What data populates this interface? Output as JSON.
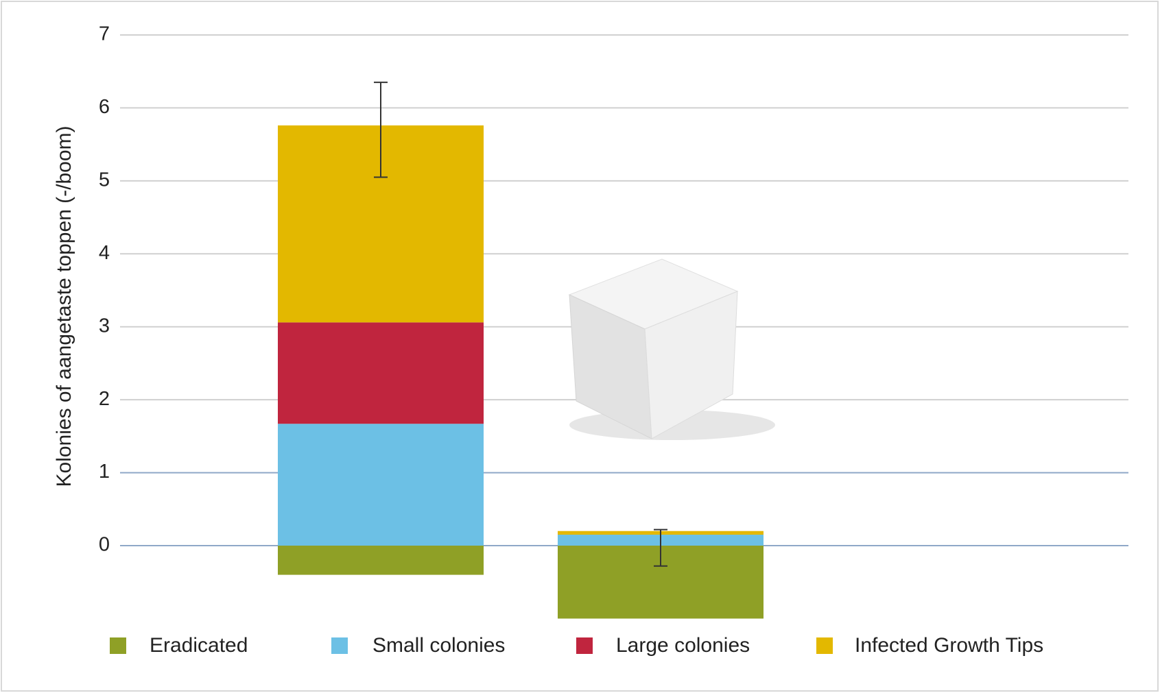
{
  "chart_data": {
    "type": "stacked-bar",
    "ylabel": "Kolonies of aangetaste toppen (-/boom)",
    "categories": [
      null,
      null
    ],
    "series": [
      {
        "name": "Eradicated",
        "color": "#8fa026",
        "values": [
          -0.4,
          -1.0
        ]
      },
      {
        "name": "Small colonies",
        "color": "#6cc0e5",
        "values": [
          1.67,
          0.15
        ]
      },
      {
        "name": "Large colonies",
        "color": "#c0253e",
        "values": [
          1.39,
          0.0
        ]
      },
      {
        "name": "Infected Growth Tips",
        "color": "#e3b800",
        "values": [
          2.7,
          0.05
        ]
      }
    ],
    "error_bars": {
      "centers": [
        5.7,
        -0.03
      ],
      "errors": [
        0.65,
        0.25
      ]
    },
    "ylim": [
      -1.1,
      7
    ],
    "yticks": [
      0,
      1,
      2,
      3,
      4,
      5,
      6,
      7
    ],
    "grid": true
  }
}
